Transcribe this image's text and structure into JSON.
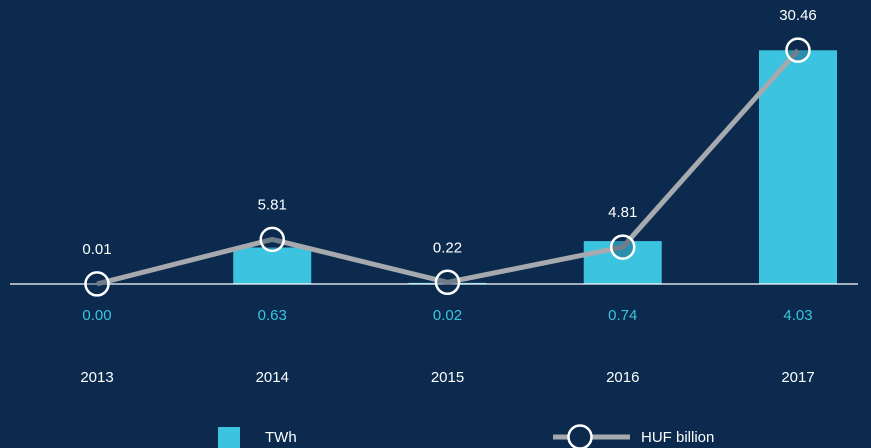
{
  "chart_data": {
    "type": "bar_line",
    "categories": [
      "2013",
      "2014",
      "2015",
      "2016",
      "2017"
    ],
    "series": [
      {
        "name": "TWh",
        "type": "bar",
        "color": "#3bc3e0",
        "axis": "y",
        "values": [
          0,
          0.63,
          0.02,
          0.74,
          4.03
        ],
        "value_labels": [
          "0.00",
          "0.63",
          "0.02",
          "0.74",
          "4.03"
        ]
      },
      {
        "name": "HUF billion",
        "type": "line",
        "color": "#a6a9ad",
        "axis": "y2",
        "values": [
          0.01,
          5.81,
          0.22,
          4.81,
          30.46
        ]
      }
    ],
    "ylim": [
      0,
      4.5
    ],
    "y2lim": [
      0,
      34
    ]
  }
}
